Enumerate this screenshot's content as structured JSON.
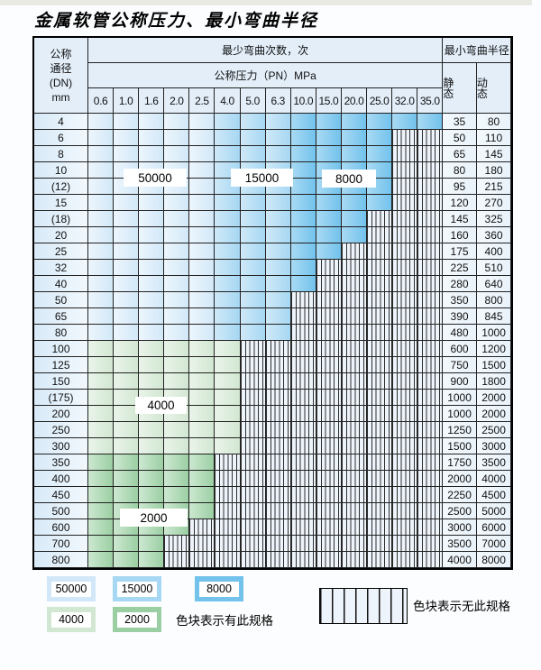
{
  "title": "金属软管公称压力、最小弯曲半径",
  "table": {
    "header": {
      "dn_lines": [
        "公称",
        "通径",
        "(DN)",
        "mm"
      ],
      "bend_cycles": "最少弯曲次数，次",
      "pressure_heading": "公称压力（PN）MPa",
      "min_radius": "最小弯曲半径",
      "static_label": "静 态",
      "dynamic_label": "动 态",
      "pressures": [
        "0.6",
        "1.0",
        "1.6",
        "2.0",
        "2.5",
        "4.0",
        "5.0",
        "6.3",
        "10.0",
        "15.0",
        "20.0",
        "25.0",
        "32.0",
        "35.0"
      ]
    },
    "rows": [
      {
        "dn": "4",
        "zone": "blue",
        "max": 13,
        "static": "35",
        "dynamic": "80"
      },
      {
        "dn": "6",
        "zone": "blue",
        "max": 11,
        "static": "50",
        "dynamic": "110"
      },
      {
        "dn": "8",
        "zone": "blue",
        "max": 11,
        "static": "65",
        "dynamic": "145"
      },
      {
        "dn": "10",
        "zone": "blue",
        "max": 11,
        "static": "80",
        "dynamic": "180"
      },
      {
        "dn": "(12)",
        "zone": "blue",
        "max": 11,
        "static": "95",
        "dynamic": "215"
      },
      {
        "dn": "15",
        "zone": "blue",
        "max": 11,
        "static": "120",
        "dynamic": "270"
      },
      {
        "dn": "(18)",
        "zone": "blue",
        "max": 10,
        "static": "145",
        "dynamic": "325"
      },
      {
        "dn": "20",
        "zone": "blue",
        "max": 10,
        "static": "160",
        "dynamic": "360"
      },
      {
        "dn": "25",
        "zone": "blue",
        "max": 9,
        "static": "175",
        "dynamic": "400"
      },
      {
        "dn": "32",
        "zone": "blue",
        "max": 8,
        "static": "225",
        "dynamic": "510"
      },
      {
        "dn": "40",
        "zone": "blue",
        "max": 8,
        "static": "280",
        "dynamic": "640"
      },
      {
        "dn": "50",
        "zone": "blue",
        "max": 7,
        "static": "350",
        "dynamic": "800"
      },
      {
        "dn": "65",
        "zone": "blue",
        "max": 7,
        "static": "390",
        "dynamic": "845"
      },
      {
        "dn": "80",
        "zone": "blue",
        "max": 7,
        "static": "480",
        "dynamic": "1000"
      },
      {
        "dn": "100",
        "zone": "green4",
        "max": 5,
        "static": "600",
        "dynamic": "1200"
      },
      {
        "dn": "125",
        "zone": "green4",
        "max": 5,
        "static": "750",
        "dynamic": "1500"
      },
      {
        "dn": "150",
        "zone": "green4",
        "max": 5,
        "static": "900",
        "dynamic": "1800"
      },
      {
        "dn": "(175)",
        "zone": "green4",
        "max": 5,
        "static": "1000",
        "dynamic": "2000"
      },
      {
        "dn": "200",
        "zone": "green4",
        "max": 5,
        "static": "1000",
        "dynamic": "2000"
      },
      {
        "dn": "250",
        "zone": "green4",
        "max": 5,
        "static": "1250",
        "dynamic": "2500"
      },
      {
        "dn": "300",
        "zone": "green4",
        "max": 5,
        "static": "1500",
        "dynamic": "3000"
      },
      {
        "dn": "350",
        "zone": "green2",
        "max": 4,
        "static": "1750",
        "dynamic": "3500"
      },
      {
        "dn": "400",
        "zone": "green2",
        "max": 4,
        "static": "2000",
        "dynamic": "4000"
      },
      {
        "dn": "450",
        "zone": "green2",
        "max": 4,
        "static": "2250",
        "dynamic": "4500"
      },
      {
        "dn": "500",
        "zone": "green2",
        "max": 4,
        "static": "2500",
        "dynamic": "5000"
      },
      {
        "dn": "600",
        "zone": "green2",
        "max": 3,
        "static": "3000",
        "dynamic": "6000"
      },
      {
        "dn": "700",
        "zone": "green2",
        "max": 2,
        "static": "3500",
        "dynamic": "7000"
      },
      {
        "dn": "800",
        "zone": "green2",
        "max": 2,
        "static": "4000",
        "dynamic": "8000"
      }
    ]
  },
  "overlays": {
    "b50000": "50000",
    "b15000": "15000",
    "b8000": "8000",
    "g4000": "4000",
    "g2000": "2000"
  },
  "legend": {
    "items": [
      {
        "label": "50000",
        "key": "c50000"
      },
      {
        "label": "15000",
        "key": "c15000"
      },
      {
        "label": "8000",
        "key": "c8000"
      },
      {
        "label": "4000",
        "key": "c4000"
      },
      {
        "label": "2000",
        "key": "c2000"
      }
    ],
    "has_spec_note": "色块表示有此规格",
    "no_spec_note": "色块表示无此规格"
  },
  "colors": {
    "c50000": "#d2e8f8",
    "c50000_light": "#edf6fc",
    "c15000": "#a6d7f3",
    "c15000_light": "#cfe9f8",
    "c8000": "#72c2ec",
    "c8000_light": "#a9daf3",
    "c4000": "#d2e7d2",
    "c4000_light": "#eaf4ea",
    "c2000": "#9bcfa3",
    "c2000_light": "#cde8d1",
    "hatch_bg": "#eef4fb",
    "grid_line": "#222222",
    "header_bg": "#e3eef9",
    "label_col_bg": "#d8eaf8",
    "value_col_bg": "#e9f2fa"
  }
}
